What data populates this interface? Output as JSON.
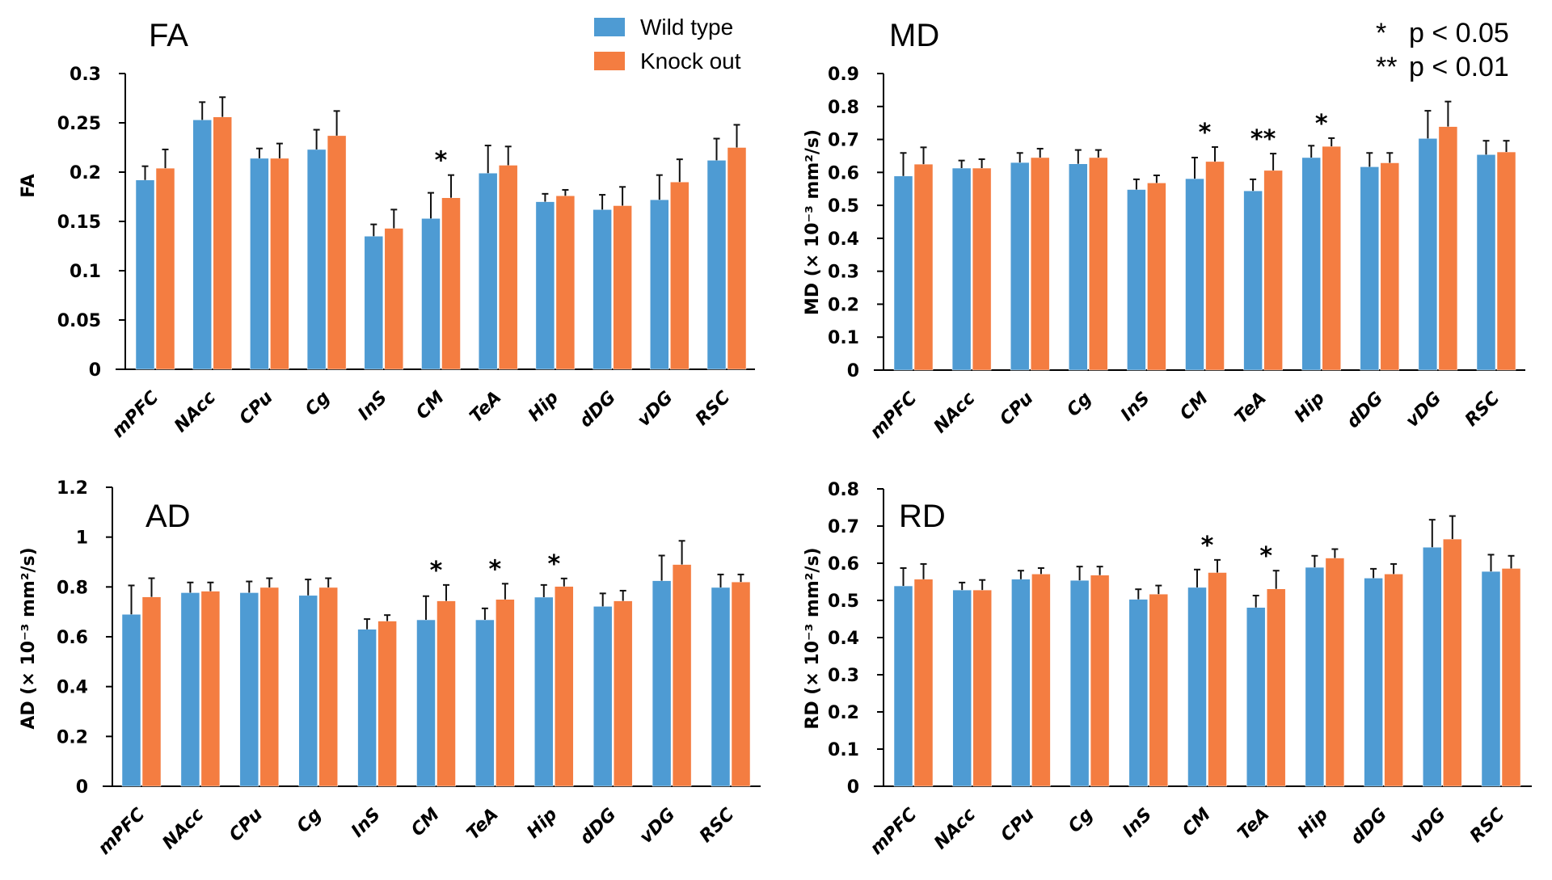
{
  "figure": {
    "legend": {
      "items": [
        {
          "label": "Wild type",
          "color": "#4e9bd3"
        },
        {
          "label": "Knock out",
          "color": "#f47d41"
        }
      ]
    },
    "significance_key": [
      {
        "mark": "*",
        "text": "p < 0.05"
      },
      {
        "mark": "**",
        "text": "p < 0.01"
      }
    ]
  },
  "chart_data": [
    {
      "id": "fa",
      "type": "bar",
      "title": "FA",
      "xlabel": "",
      "ylabel": "FA",
      "ylim": [
        0,
        0.3
      ],
      "yticks": [
        0,
        0.05,
        0.1,
        0.15,
        0.2,
        0.25,
        0.3
      ],
      "ytick_labels": [
        "0",
        "0.05",
        "0.1",
        "0.15",
        "0.2",
        "0.25",
        "0.3"
      ],
      "grid": false,
      "legend": "top-right",
      "categories": [
        "mPFC",
        "NAcc",
        "CPu",
        "Cg",
        "InS",
        "CM",
        "TeA",
        "Hip",
        "dDG",
        "vDG",
        "RSC"
      ],
      "series": [
        {
          "name": "Wild type",
          "color": "#4e9bd3",
          "values": [
            0.192,
            0.253,
            0.214,
            0.223,
            0.135,
            0.153,
            0.199,
            0.17,
            0.162,
            0.172,
            0.212
          ],
          "error_upper": [
            0.206,
            0.271,
            0.224,
            0.243,
            0.147,
            0.179,
            0.227,
            0.178,
            0.177,
            0.197,
            0.234
          ]
        },
        {
          "name": "Knock out",
          "color": "#f47d41",
          "values": [
            0.204,
            0.256,
            0.214,
            0.237,
            0.143,
            0.174,
            0.207,
            0.176,
            0.166,
            0.19,
            0.225
          ],
          "error_upper": [
            0.223,
            0.276,
            0.229,
            0.262,
            0.162,
            0.197,
            0.226,
            0.182,
            0.185,
            0.213,
            0.248
          ]
        }
      ],
      "significance": [
        {
          "category": "CM",
          "mark": "*"
        }
      ]
    },
    {
      "id": "md",
      "type": "bar",
      "title": "MD",
      "xlabel": "",
      "ylabel": "MD (× 10⁻³ mm²/s)",
      "ylim": [
        0,
        0.9
      ],
      "yticks": [
        0,
        0.1,
        0.2,
        0.3,
        0.4,
        0.5,
        0.6,
        0.7,
        0.8,
        0.9
      ],
      "ytick_labels": [
        "0",
        "0.1",
        "0.2",
        "0.3",
        "0.4",
        "0.5",
        "0.6",
        "0.7",
        "0.8",
        "0.9"
      ],
      "grid": false,
      "categories": [
        "mPFC",
        "NAcc",
        "CPu",
        "Cg",
        "InS",
        "CM",
        "TeA",
        "Hip",
        "dDG",
        "vDG",
        "RSC"
      ],
      "series": [
        {
          "name": "Wild type",
          "color": "#4e9bd3",
          "values": [
            0.589,
            0.613,
            0.63,
            0.626,
            0.548,
            0.581,
            0.544,
            0.645,
            0.617,
            0.703,
            0.654
          ],
          "error_upper": [
            0.659,
            0.636,
            0.659,
            0.668,
            0.579,
            0.645,
            0.579,
            0.681,
            0.659,
            0.787,
            0.696
          ]
        },
        {
          "name": "Knock out",
          "color": "#f47d41",
          "values": [
            0.625,
            0.613,
            0.645,
            0.645,
            0.568,
            0.633,
            0.606,
            0.679,
            0.629,
            0.739,
            0.662
          ],
          "error_upper": [
            0.676,
            0.64,
            0.672,
            0.668,
            0.591,
            0.677,
            0.657,
            0.704,
            0.659,
            0.815,
            0.696
          ]
        }
      ],
      "significance": [
        {
          "category": "CM",
          "mark": "*"
        },
        {
          "category": "TeA",
          "mark": "**"
        },
        {
          "category": "Hip",
          "mark": "*"
        }
      ]
    },
    {
      "id": "ad",
      "type": "bar",
      "title": "AD",
      "xlabel": "",
      "ylabel": "AD (× 10⁻³ mm²/s)",
      "ylim": [
        0,
        1.2
      ],
      "yticks": [
        0,
        0.2,
        0.4,
        0.6,
        0.8,
        1.0,
        1.2
      ],
      "ytick_labels": [
        "0",
        "0.2",
        "0.4",
        "0.6",
        "0.8",
        "1",
        "1.2"
      ],
      "grid": false,
      "categories": [
        "mPFC",
        "NAcc",
        "CPu",
        "Cg",
        "InS",
        "CM",
        "TeA",
        "Hip",
        "dDG",
        "vDG",
        "RSC"
      ],
      "series": [
        {
          "name": "Wild type",
          "color": "#4e9bd3",
          "values": [
            0.69,
            0.777,
            0.777,
            0.766,
            0.63,
            0.668,
            0.668,
            0.759,
            0.722,
            0.825,
            0.798
          ],
          "error_upper": [
            0.806,
            0.818,
            0.822,
            0.83,
            0.671,
            0.763,
            0.714,
            0.808,
            0.774,
            0.926,
            0.85
          ]
        },
        {
          "name": "Knock out",
          "color": "#f47d41",
          "values": [
            0.76,
            0.783,
            0.798,
            0.798,
            0.663,
            0.744,
            0.75,
            0.802,
            0.744,
            0.89,
            0.82
          ],
          "error_upper": [
            0.835,
            0.818,
            0.835,
            0.835,
            0.687,
            0.808,
            0.813,
            0.834,
            0.785,
            0.985,
            0.85
          ]
        }
      ],
      "significance": [
        {
          "category": "CM",
          "mark": "*"
        },
        {
          "category": "TeA",
          "mark": "*"
        },
        {
          "category": "Hip",
          "mark": "*"
        }
      ]
    },
    {
      "id": "rd",
      "type": "bar",
      "title": "RD",
      "xlabel": "",
      "ylabel": "RD (× 10⁻³ mm²/s)",
      "ylim": [
        0,
        0.8
      ],
      "yticks": [
        0,
        0.1,
        0.2,
        0.3,
        0.4,
        0.5,
        0.6,
        0.7,
        0.8
      ],
      "ytick_labels": [
        "0",
        "0.1",
        "0.2",
        "0.3",
        "0.4",
        "0.5",
        "0.6",
        "0.7",
        "0.8"
      ],
      "grid": false,
      "categories": [
        "mPFC",
        "NAcc",
        "CPu",
        "Cg",
        "InS",
        "CM",
        "TeA",
        "Hip",
        "dDG",
        "vDG",
        "RSC"
      ],
      "series": [
        {
          "name": "Wild type",
          "color": "#4e9bd3",
          "values": [
            0.539,
            0.528,
            0.557,
            0.554,
            0.503,
            0.535,
            0.481,
            0.589,
            0.56,
            0.643,
            0.578
          ],
          "error_upper": [
            0.587,
            0.548,
            0.58,
            0.591,
            0.53,
            0.583,
            0.513,
            0.62,
            0.585,
            0.717,
            0.623
          ]
        },
        {
          "name": "Knock out",
          "color": "#f47d41",
          "values": [
            0.557,
            0.528,
            0.571,
            0.568,
            0.517,
            0.575,
            0.531,
            0.614,
            0.571,
            0.665,
            0.586
          ],
          "error_upper": [
            0.598,
            0.555,
            0.587,
            0.591,
            0.54,
            0.609,
            0.58,
            0.638,
            0.598,
            0.727,
            0.62
          ]
        }
      ],
      "significance": [
        {
          "category": "CM",
          "mark": "*"
        },
        {
          "category": "TeA",
          "mark": "*"
        }
      ]
    }
  ]
}
